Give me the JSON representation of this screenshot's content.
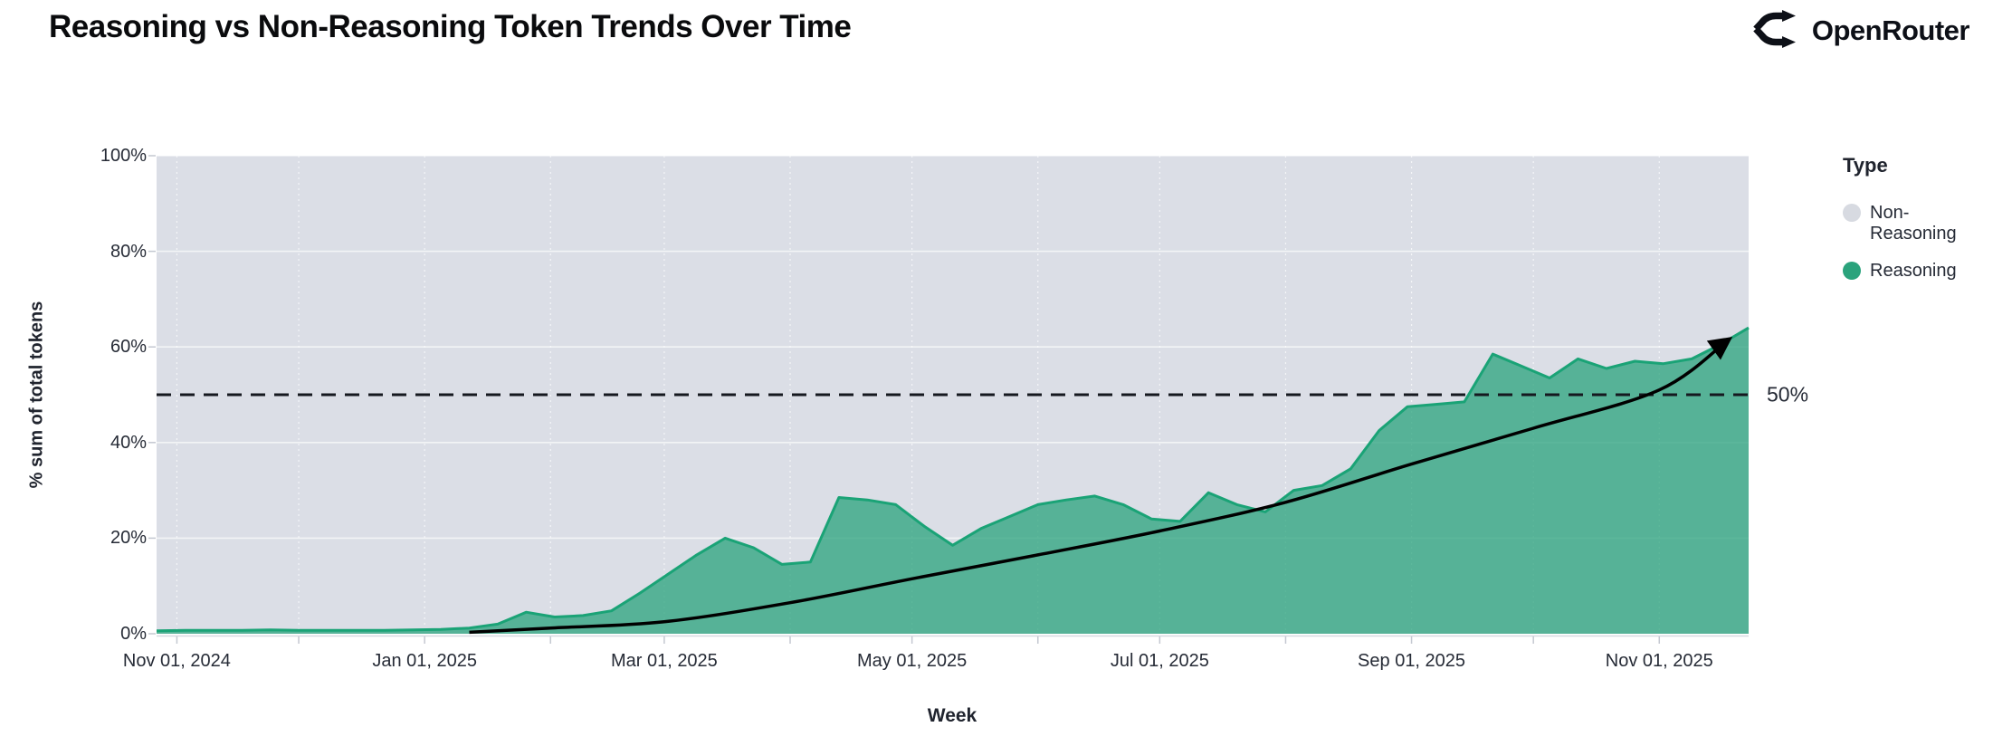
{
  "header": {
    "title": "Reasoning vs Non-Reasoning Token Trends Over Time",
    "brand": "OpenRouter"
  },
  "chart_data": {
    "type": "area",
    "stacking": "percent",
    "title": "Reasoning vs Non-Reasoning Token Trends Over Time",
    "xlabel": "Week",
    "ylabel": "% sum of total tokens",
    "ylim": [
      0,
      100
    ],
    "grid": true,
    "plot_bg": "#dbdee6",
    "legend": {
      "title": "Type",
      "position": "right",
      "entries": [
        {
          "label": "Non-Reasoning",
          "color": "#d7dae1"
        },
        {
          "label": "Reasoning",
          "color": "#2aa37c"
        }
      ]
    },
    "y_ticks": [
      {
        "label": "0%",
        "value": 0
      },
      {
        "label": "20%",
        "value": 20
      },
      {
        "label": "40%",
        "value": 40
      },
      {
        "label": "60%",
        "value": 60
      },
      {
        "label": "80%",
        "value": 80
      },
      {
        "label": "100%",
        "value": 100
      }
    ],
    "x_ticks": [
      {
        "label": "Nov 01, 2024",
        "date": "2024-11-01"
      },
      {
        "label": "Jan 01, 2025",
        "date": "2025-01-01"
      },
      {
        "label": "Mar 01, 2025",
        "date": "2025-03-01"
      },
      {
        "label": "May 01, 2025",
        "date": "2025-05-01"
      },
      {
        "label": "Jul 01, 2025",
        "date": "2025-07-01"
      },
      {
        "label": "Sep 01, 2025",
        "date": "2025-09-01"
      },
      {
        "label": "Nov 01, 2025",
        "date": "2025-11-01"
      }
    ],
    "month_gridlines": [
      "2024-11-01",
      "2024-12-01",
      "2025-01-01",
      "2025-02-01",
      "2025-03-01",
      "2025-04-01",
      "2025-05-01",
      "2025-06-01",
      "2025-07-01",
      "2025-08-01",
      "2025-09-01",
      "2025-10-01",
      "2025-11-01"
    ],
    "series": [
      {
        "name": "Reasoning",
        "unit": "% of total tokens",
        "line_color": "#1aa376",
        "fill_color": "rgba(42,163,124,0.75)",
        "points": [
          [
            "2024-10-27",
            0.6
          ],
          [
            "2024-11-03",
            0.7
          ],
          [
            "2024-11-10",
            0.7
          ],
          [
            "2024-11-17",
            0.7
          ],
          [
            "2024-11-24",
            0.8
          ],
          [
            "2024-12-01",
            0.7
          ],
          [
            "2024-12-08",
            0.7
          ],
          [
            "2024-12-15",
            0.7
          ],
          [
            "2024-12-22",
            0.7
          ],
          [
            "2024-12-29",
            0.8
          ],
          [
            "2025-01-05",
            0.9
          ],
          [
            "2025-01-12",
            1.2
          ],
          [
            "2025-01-19",
            2.0
          ],
          [
            "2025-01-26",
            4.5
          ],
          [
            "2025-02-02",
            3.5
          ],
          [
            "2025-02-09",
            3.8
          ],
          [
            "2025-02-16",
            4.8
          ],
          [
            "2025-02-23",
            8.5
          ],
          [
            "2025-03-02",
            12.5
          ],
          [
            "2025-03-09",
            16.5
          ],
          [
            "2025-03-16",
            20.0
          ],
          [
            "2025-03-23",
            18.0
          ],
          [
            "2025-03-30",
            14.5
          ],
          [
            "2025-04-06",
            15.0
          ],
          [
            "2025-04-13",
            28.5
          ],
          [
            "2025-04-20",
            28.0
          ],
          [
            "2025-04-27",
            27.0
          ],
          [
            "2025-05-04",
            22.5
          ],
          [
            "2025-05-11",
            18.5
          ],
          [
            "2025-05-18",
            22.0
          ],
          [
            "2025-05-25",
            24.5
          ],
          [
            "2025-06-01",
            27.0
          ],
          [
            "2025-06-08",
            28.0
          ],
          [
            "2025-06-15",
            28.8
          ],
          [
            "2025-06-22",
            27.0
          ],
          [
            "2025-06-29",
            24.0
          ],
          [
            "2025-07-06",
            23.5
          ],
          [
            "2025-07-13",
            29.5
          ],
          [
            "2025-07-20",
            27.0
          ],
          [
            "2025-07-27",
            25.5
          ],
          [
            "2025-08-03",
            30.0
          ],
          [
            "2025-08-10",
            31.0
          ],
          [
            "2025-08-17",
            34.5
          ],
          [
            "2025-08-24",
            42.5
          ],
          [
            "2025-08-31",
            47.5
          ],
          [
            "2025-09-07",
            48.0
          ],
          [
            "2025-09-14",
            48.5
          ],
          [
            "2025-09-21",
            58.5
          ],
          [
            "2025-09-28",
            56.0
          ],
          [
            "2025-10-05",
            53.5
          ],
          [
            "2025-10-12",
            57.5
          ],
          [
            "2025-10-19",
            55.5
          ],
          [
            "2025-10-26",
            57.0
          ],
          [
            "2025-11-02",
            56.5
          ],
          [
            "2025-11-09",
            57.5
          ],
          [
            "2025-11-16",
            60.5
          ],
          [
            "2025-11-23",
            64.0
          ]
        ]
      },
      {
        "name": "Non-Reasoning",
        "complement_of": "Reasoning",
        "note": "fills remainder up to 100%",
        "fill_color": "#dbdee6"
      }
    ],
    "annotations": {
      "hline": {
        "value": 50,
        "label": "50%",
        "style": "dashed",
        "color": "#15181f"
      },
      "trend_arrow": {
        "color": "#000000",
        "points": [
          [
            "2025-01-12",
            0.3
          ],
          [
            "2025-02-01",
            1.2
          ],
          [
            "2025-03-01",
            2.5
          ],
          [
            "2025-04-01",
            6.5
          ],
          [
            "2025-05-01",
            11.5
          ],
          [
            "2025-06-01",
            16.5
          ],
          [
            "2025-07-01",
            21.5
          ],
          [
            "2025-08-01",
            27.5
          ],
          [
            "2025-09-01",
            35.5
          ],
          [
            "2025-10-01",
            43.0
          ],
          [
            "2025-11-01",
            51.0
          ],
          [
            "2025-11-18",
            61.5
          ]
        ]
      }
    }
  }
}
